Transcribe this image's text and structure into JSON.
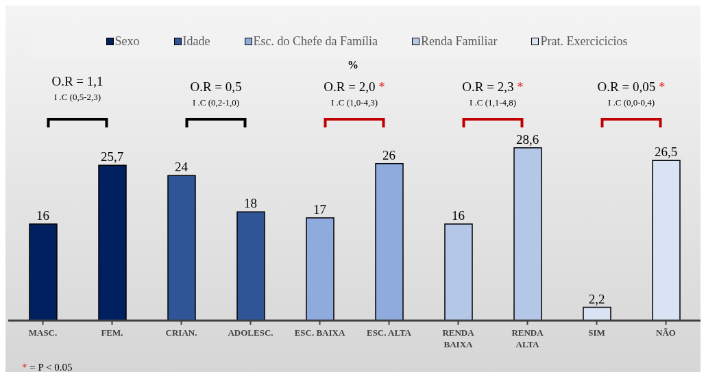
{
  "chart_data": {
    "type": "bar",
    "subtitle": "%",
    "categories": [
      "MASC.",
      "FEM.",
      "CRIAN.",
      "ADOLESC.",
      "ESC. BAIXA",
      "ESC. ALTA",
      "RENDA BAIXA",
      "RENDA ALTA",
      "SIM",
      "NÃO"
    ],
    "series": [
      {
        "name": "Sexo",
        "color": "#002060",
        "values": [
          16,
          25.7,
          null,
          null,
          null,
          null,
          null,
          null,
          null,
          null
        ],
        "value_labels": [
          "16",
          "25,7",
          null,
          null,
          null,
          null,
          null,
          null,
          null,
          null
        ]
      },
      {
        "name": "Idade",
        "color": "#2f5597",
        "values": [
          null,
          null,
          24,
          18,
          null,
          null,
          null,
          null,
          null,
          null
        ],
        "value_labels": [
          null,
          null,
          "24",
          "18",
          null,
          null,
          null,
          null,
          null,
          null
        ]
      },
      {
        "name": "Esc. do Chefe da Família",
        "color": "#8faadc",
        "values": [
          null,
          null,
          null,
          null,
          17,
          26,
          null,
          null,
          null,
          null
        ],
        "value_labels": [
          null,
          null,
          null,
          null,
          "17",
          "26",
          null,
          null,
          null,
          null
        ]
      },
      {
        "name": "Renda Familiar",
        "color": "#b4c7e7",
        "values": [
          null,
          null,
          null,
          null,
          null,
          null,
          16,
          28.6,
          null,
          null
        ],
        "value_labels": [
          null,
          null,
          null,
          null,
          null,
          null,
          "16",
          "28,6",
          null,
          null
        ]
      },
      {
        "name": "Prat. Exercicicios",
        "color": "#dae3f3",
        "values": [
          null,
          null,
          null,
          null,
          null,
          null,
          null,
          null,
          2.2,
          26.5
        ],
        "value_labels": [
          null,
          null,
          null,
          null,
          null,
          null,
          null,
          null,
          "2,2",
          "26,5"
        ]
      }
    ],
    "legend": "top",
    "tick_labels": "x",
    "annotations": [
      "O.R = 1,1",
      "I .C (0,5-2,3)",
      "O.R = 0,5",
      "I .C (0,2-1,0)",
      "O.R = 2,0 *",
      "I .C (1,0-4,3)",
      "O.R = 2,3 *",
      "I .C (1,1-4,8)",
      "O.R = 0,05 *",
      "I .C (0,0-0,4)",
      "* = P < 0.05"
    ]
  }
}
